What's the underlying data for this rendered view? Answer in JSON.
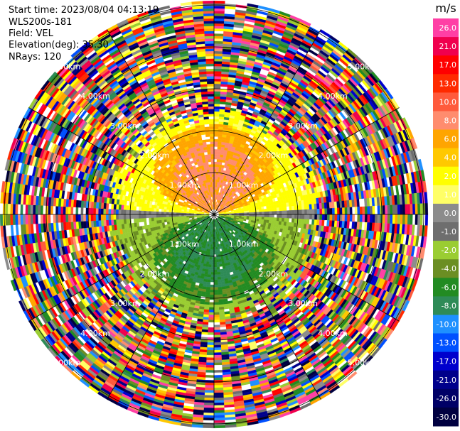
{
  "info": {
    "start_time": "Start time: 2023/08/04 04:13:19",
    "station": "WLS200s-181",
    "field": "Field: VEL",
    "elevation": "Elevation(deg): 35.30",
    "nrays": "NRays: 120"
  },
  "colorbar": {
    "unit": "m/s",
    "ticks": [
      "26.0",
      "21.0",
      "17.0",
      "13.0",
      "10.0",
      "8.0",
      "6.0",
      "4.0",
      "2.0",
      "1.0",
      "0.0",
      "-1.0",
      "-2.0",
      "-4.0",
      "-6.0",
      "-8.0",
      "-10.0",
      "-13.0",
      "-17.0",
      "-21.0",
      "-26.0",
      "-30.0"
    ],
    "colors": [
      "#ff3fa5",
      "#f0004e",
      "#ff0000",
      "#ff2a00",
      "#ff5a3c",
      "#ff8c6e",
      "#ffa500",
      "#ffc800",
      "#ffff00",
      "#ffff66",
      "#8c8c8c",
      "#6e6e6e",
      "#9acd32",
      "#6b8e23",
      "#228b22",
      "#2e8b57",
      "#1e90ff",
      "#0050ff",
      "#0000cd",
      "#00008b",
      "#000066",
      "#000040"
    ]
  },
  "chart_data": {
    "type": "ppi",
    "field": "VEL",
    "units": "m/s",
    "n_rays": 120,
    "elevation_deg": 35.3,
    "range_rings_km": [
      1.0,
      2.0,
      3.0,
      4.0,
      5.0
    ],
    "range_ring_labels": [
      "1.00km",
      "2.00km",
      "3.00km",
      "4.00km",
      "5.00km"
    ],
    "spoke_angles_deg": [
      0,
      30,
      60,
      90,
      120,
      150,
      180,
      210,
      240,
      270,
      300,
      330
    ],
    "max_range_km": 5.1,
    "pattern": {
      "north_half_inner": "positive velocities 0–10 m/s (yellow/orange/salmon)",
      "south_half_inner": "negative velocities 0 to -8 m/s (greens)",
      "outer_region_km": 2.6,
      "outer": "noisy random values across full range"
    }
  }
}
